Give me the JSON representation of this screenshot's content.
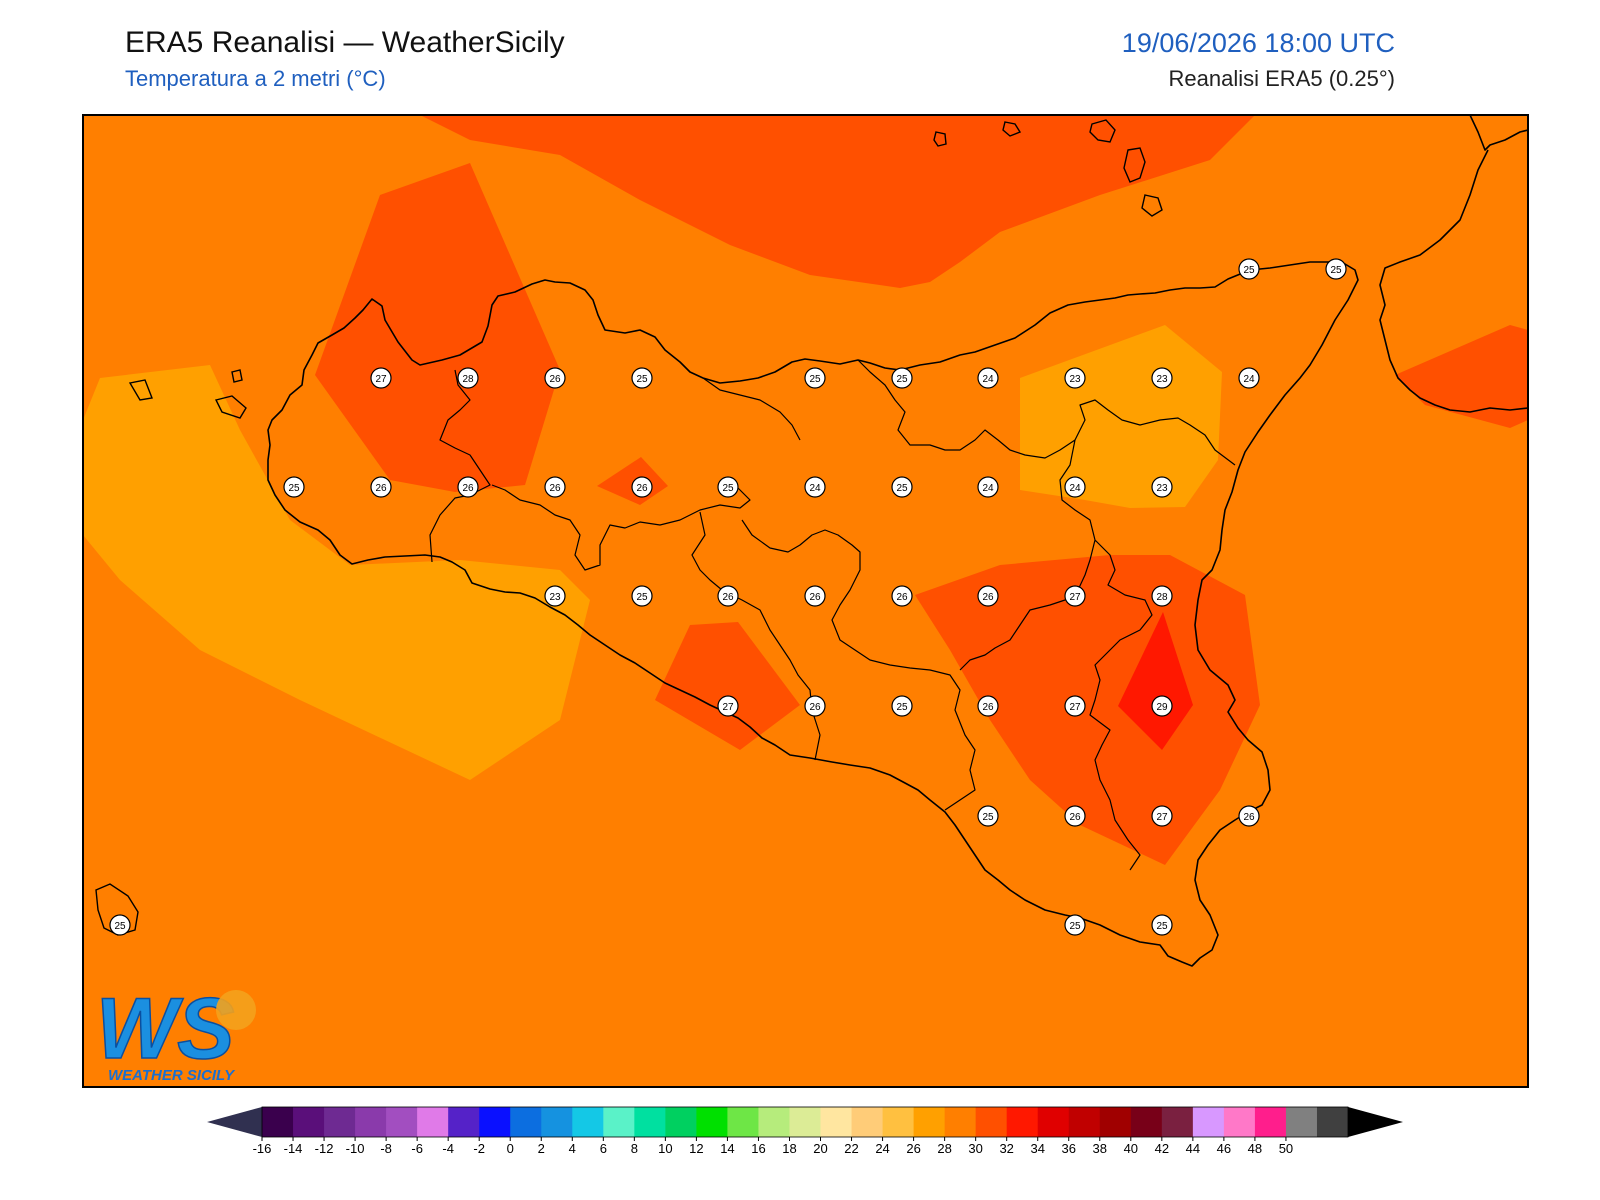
{
  "header": {
    "title": "ERA5 Reanalisi — WeatherSicily",
    "subtitle": "Temperatura a 2 metri (°C)",
    "datetime": "19/06/2026 18:00 UTC",
    "model": "Reanalisi ERA5 (0.25°)"
  },
  "logo": {
    "letters": "WS",
    "name": "WEATHER SICILY"
  },
  "colors": {
    "base_24_26": "#ff7f00",
    "band_22_24": "#ffa000",
    "band_26_28": "#ff5000",
    "band_28_30": "#ff1800",
    "coastline": "#000000",
    "frame": "#000000"
  },
  "station_values": [
    {
      "value": "27"
    },
    {
      "value": "28"
    },
    {
      "value": "26"
    },
    {
      "value": "25"
    },
    {
      "value": "25"
    },
    {
      "value": "25"
    },
    {
      "value": "24"
    },
    {
      "value": "23"
    },
    {
      "value": "23"
    },
    {
      "value": "24"
    },
    {
      "value": "25"
    },
    {
      "value": "26"
    },
    {
      "value": "26"
    },
    {
      "value": "26"
    },
    {
      "value": "26"
    },
    {
      "value": "25"
    },
    {
      "value": "24"
    },
    {
      "value": "25"
    },
    {
      "value": "24"
    },
    {
      "value": "24"
    },
    {
      "value": "23"
    },
    {
      "value": "23"
    },
    {
      "value": "25"
    },
    {
      "value": "26"
    },
    {
      "value": "26"
    },
    {
      "value": "26"
    },
    {
      "value": "26"
    },
    {
      "value": "27"
    },
    {
      "value": "28"
    },
    {
      "value": "27"
    },
    {
      "value": "26"
    },
    {
      "value": "25"
    },
    {
      "value": "26"
    },
    {
      "value": "27"
    },
    {
      "value": "29"
    },
    {
      "value": "25"
    },
    {
      "value": "26"
    },
    {
      "value": "27"
    },
    {
      "value": "26"
    },
    {
      "value": "25"
    },
    {
      "value": "25"
    },
    {
      "value": "25"
    },
    {
      "value": "25"
    },
    {
      "value": "25"
    }
  ],
  "colorbar": {
    "colors": [
      "#3a004d",
      "#5a0f7a",
      "#6e2a92",
      "#8a3aab",
      "#a24ec0",
      "#e07ae8",
      "#5522c8",
      "#0a10ff",
      "#0c6ee0",
      "#1592e0",
      "#14c8e6",
      "#5af2c8",
      "#00e0a0",
      "#00d060",
      "#00e000",
      "#6ee646",
      "#b6ec7c",
      "#dcec96",
      "#ffe6a0",
      "#ffcc78",
      "#ffc040",
      "#ffa000",
      "#ff7f00",
      "#ff5000",
      "#ff1800",
      "#e00000",
      "#c00000",
      "#a00000",
      "#780018",
      "#7a2040",
      "#d898ff",
      "#ff78c8",
      "#ff1e8c",
      "#808080",
      "#404040"
    ],
    "labels": [
      "-16",
      "-14",
      "-12",
      "-10",
      "-8",
      "-6",
      "-4",
      "-2",
      "0",
      "2",
      "4",
      "6",
      "8",
      "10",
      "12",
      "14",
      "16",
      "18",
      "20",
      "22",
      "24",
      "26",
      "28",
      "30",
      "32",
      "34",
      "36",
      "38",
      "40",
      "42",
      "44",
      "46",
      "48",
      "50"
    ],
    "under_color": "#303050",
    "over_color": "#000000"
  }
}
